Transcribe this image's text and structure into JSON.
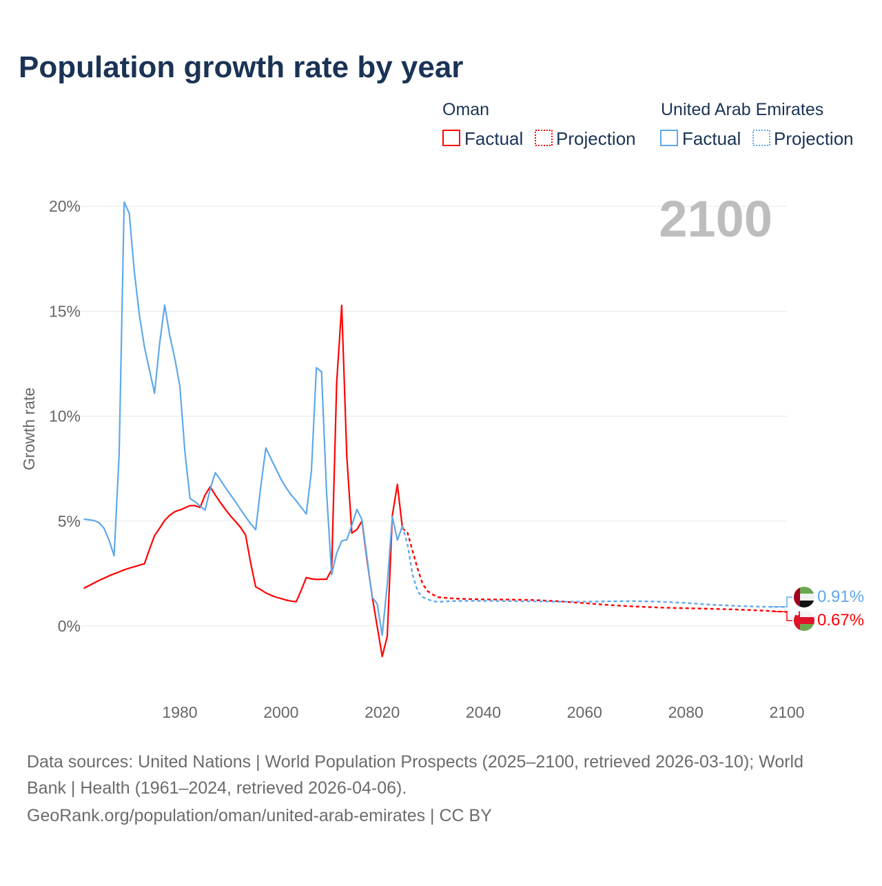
{
  "title": "Population growth rate by year",
  "colors": {
    "oman": "#ff0000",
    "uae": "#5ea8ea",
    "title": "#1a3355"
  },
  "legend": {
    "groups": [
      {
        "country": "Oman",
        "factual": "Factual",
        "projection": "Projection"
      },
      {
        "country": "United Arab Emirates",
        "factual": "Factual",
        "projection": "Projection"
      }
    ]
  },
  "current_year_label": "2100",
  "end_labels": {
    "uae": "0.91%",
    "oman": "0.67%"
  },
  "flags": {
    "uae": "uae-flag-icon",
    "oman": "oman-flag-icon"
  },
  "footer": {
    "line1": "Data sources: United Nations | World Population Prospects (2025–2100, retrieved 2026-03-10); World",
    "line2": "Bank | Health (1961–2024, retrieved 2026-04-06).",
    "line3": "GeoRank.org/population/oman/united-arab-emirates | CC BY"
  },
  "chart_data": {
    "type": "line",
    "title": "Population growth rate by year",
    "xlabel": "",
    "ylabel": "Growth rate",
    "xlim": [
      1961,
      2100
    ],
    "ylim": [
      -3.3,
      20.5
    ],
    "xticks": [
      1980,
      2000,
      2020,
      2040,
      2060,
      2080,
      2100
    ],
    "xtick_labels": [
      "1980",
      "2000",
      "2020",
      "2040",
      "2060",
      "2080",
      "2100"
    ],
    "yticks": [
      0,
      5,
      10,
      15,
      20
    ],
    "ytick_labels": [
      "0%",
      "5%",
      "10%",
      "15%",
      "20%"
    ],
    "grid": true,
    "legend_position": "top-right",
    "series": [
      {
        "name": "Oman",
        "kind": "Factual",
        "color": "#ff0000",
        "x": [
          1961,
          1962,
          1963,
          1964,
          1965,
          1966,
          1967,
          1968,
          1969,
          1970,
          1971,
          1972,
          1973,
          1974,
          1975,
          1976,
          1977,
          1978,
          1979,
          1980,
          1981,
          1982,
          1983,
          1984,
          1985,
          1986,
          1987,
          1988,
          1989,
          1990,
          1991,
          1992,
          1993,
          1994,
          1995,
          1996,
          1997,
          1998,
          1999,
          2000,
          2001,
          2002,
          2003,
          2004,
          2005,
          2006,
          2007,
          2008,
          2009,
          2010,
          2011,
          2012,
          2013,
          2014,
          2015,
          2016,
          2017,
          2018,
          2019,
          2020,
          2021,
          2022,
          2023,
          2024
        ],
        "y": [
          1.8,
          1.92,
          2.05,
          2.17,
          2.28,
          2.39,
          2.49,
          2.58,
          2.68,
          2.76,
          2.83,
          2.9,
          2.97,
          3.65,
          4.31,
          4.66,
          5.03,
          5.28,
          5.45,
          5.53,
          5.63,
          5.74,
          5.74,
          5.65,
          6.25,
          6.64,
          6.25,
          5.89,
          5.56,
          5.25,
          4.98,
          4.7,
          4.34,
          3.0,
          1.87,
          1.73,
          1.58,
          1.47,
          1.38,
          1.31,
          1.24,
          1.19,
          1.16,
          1.71,
          2.31,
          2.25,
          2.22,
          2.23,
          2.23,
          2.68,
          11.6,
          15.28,
          8.1,
          4.43,
          4.6,
          5.0,
          3.13,
          1.44,
          0.0,
          -1.45,
          -0.49,
          5.28,
          6.75,
          4.66
        ]
      },
      {
        "name": "Oman",
        "kind": "Projection",
        "color": "#ff0000",
        "x": [
          2024,
          2025,
          2026,
          2027,
          2028,
          2029,
          2030,
          2031,
          2032,
          2035,
          2040,
          2045,
          2050,
          2055,
          2060,
          2065,
          2070,
          2075,
          2080,
          2085,
          2090,
          2095,
          2100
        ],
        "y": [
          4.66,
          4.45,
          3.58,
          2.73,
          2.0,
          1.66,
          1.5,
          1.38,
          1.35,
          1.3,
          1.27,
          1.26,
          1.24,
          1.18,
          1.09,
          1.0,
          0.93,
          0.88,
          0.85,
          0.82,
          0.79,
          0.74,
          0.67
        ]
      },
      {
        "name": "United Arab Emirates",
        "kind": "Factual",
        "color": "#5ea8ea",
        "x": [
          1961,
          1963,
          1964,
          1965,
          1966,
          1967,
          1968,
          1969,
          1970,
          1971,
          1972,
          1973,
          1974,
          1975,
          1976,
          1977,
          1978,
          1979,
          1980,
          1981,
          1982,
          1983,
          1984,
          1985,
          1986,
          1987,
          1988,
          1989,
          1990,
          1991,
          1992,
          1993,
          1994,
          1995,
          1996,
          1997,
          1998,
          1999,
          2000,
          2001,
          2002,
          2003,
          2004,
          2005,
          2006,
          2007,
          2008,
          2009,
          2010,
          2011,
          2012,
          2013,
          2014,
          2015,
          2016,
          2017,
          2018,
          2019,
          2020,
          2021,
          2022,
          2023,
          2024
        ],
        "y": [
          5.1,
          5.03,
          4.93,
          4.66,
          4.1,
          3.35,
          8.18,
          20.2,
          19.66,
          16.9,
          14.82,
          13.3,
          12.2,
          11.09,
          13.44,
          15.3,
          13.85,
          12.75,
          11.43,
          8.32,
          6.08,
          5.93,
          5.72,
          5.53,
          6.52,
          7.31,
          6.97,
          6.6,
          6.26,
          5.92,
          5.56,
          5.21,
          4.87,
          4.59,
          6.66,
          8.49,
          7.98,
          7.49,
          7.0,
          6.59,
          6.25,
          5.97,
          5.65,
          5.34,
          7.37,
          12.31,
          12.12,
          6.4,
          2.45,
          3.47,
          4.06,
          4.11,
          4.8,
          5.56,
          5.07,
          3.24,
          1.38,
          1.07,
          -0.43,
          2.0,
          5.22,
          4.09,
          4.77
        ]
      },
      {
        "name": "United Arab Emirates",
        "kind": "Projection",
        "color": "#5ea8ea",
        "x": [
          2024,
          2025,
          2026,
          2027,
          2028,
          2029,
          2030,
          2031,
          2032,
          2035,
          2040,
          2045,
          2050,
          2055,
          2060,
          2065,
          2070,
          2075,
          2080,
          2085,
          2090,
          2095,
          2100
        ],
        "y": [
          4.77,
          3.9,
          2.45,
          1.66,
          1.38,
          1.27,
          1.19,
          1.15,
          1.17,
          1.2,
          1.2,
          1.19,
          1.18,
          1.16,
          1.16,
          1.18,
          1.19,
          1.16,
          1.1,
          1.02,
          0.96,
          0.92,
          0.91
        ]
      }
    ]
  }
}
